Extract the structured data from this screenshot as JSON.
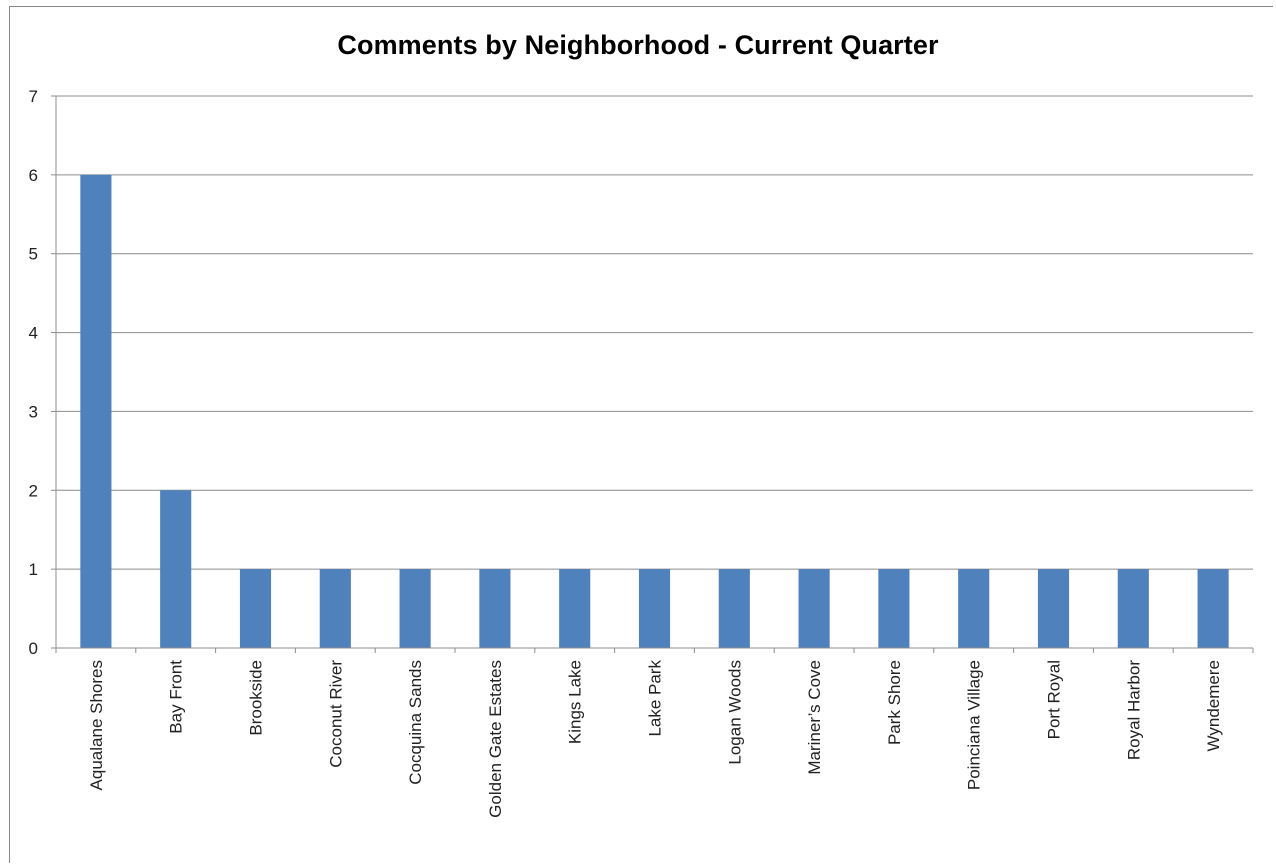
{
  "chart_data": {
    "type": "bar",
    "title": "Comments by Neighborhood  - Current Quarter",
    "xlabel": "",
    "ylabel": "",
    "ylim": [
      0,
      7
    ],
    "yticks": [
      "0",
      "1",
      "2",
      "3",
      "4",
      "5",
      "6",
      "7"
    ],
    "grid": true,
    "legend": "none",
    "bar_color": "#4F81BD",
    "categories": [
      "Aqualane Shores",
      "Bay Front",
      "Brookside",
      "Coconut River",
      "Cocquina Sands",
      "Golden Gate Estates",
      "Kings Lake",
      "Lake Park",
      "Logan Woods",
      "Mariner’s Cove",
      "Park Shore",
      "Poinciana Village",
      "Port Royal",
      "Royal Harbor",
      "Wyndemere"
    ],
    "values": [
      6,
      2,
      1,
      1,
      1,
      1,
      1,
      1,
      1,
      1,
      1,
      1,
      1,
      1,
      1
    ]
  }
}
